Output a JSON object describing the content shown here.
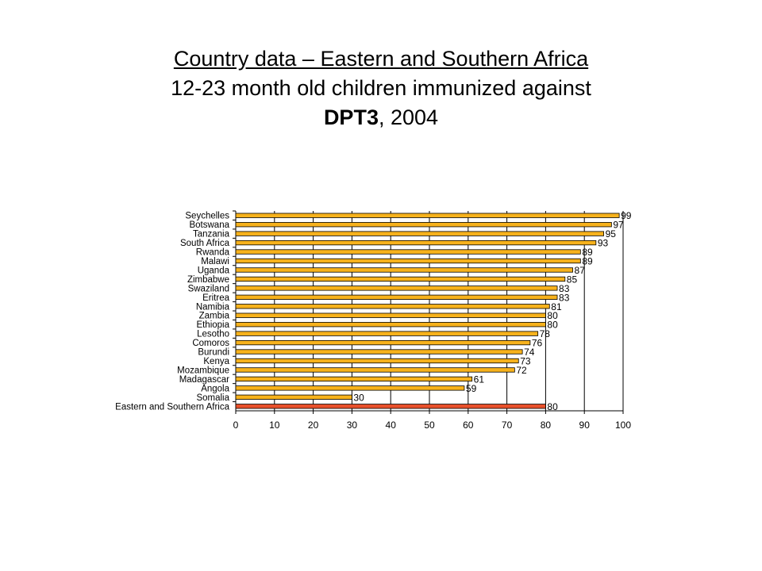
{
  "title": {
    "line1": "Country data – Eastern and Southern Africa",
    "line2": "12-23 month old children immunized against",
    "line3_bold": "DPT3",
    "line3_rest": ", 2004"
  },
  "colors": {
    "bar": "#F7B21C",
    "highlight_bar": "#E8502B",
    "bar_outline": "#000000",
    "grid": "#000000"
  },
  "chart_data": {
    "type": "bar",
    "orientation": "horizontal",
    "categories": [
      "Seychelles",
      "Botswana",
      "Tanzania",
      "South Africa",
      "Rwanda",
      "Malawi",
      "Uganda",
      "Zimbabwe",
      "Swaziland",
      "Eritrea",
      "Namibia",
      "Zambia",
      "Ethiopia",
      "Lesotho",
      "Comoros",
      "Burundi",
      "Kenya",
      "Mozambique",
      "Madagascar",
      "Angola",
      "Somalia",
      "Eastern and Southern Africa"
    ],
    "values": [
      99,
      97,
      95,
      93,
      89,
      89,
      87,
      85,
      83,
      83,
      81,
      80,
      80,
      78,
      76,
      74,
      73,
      72,
      61,
      59,
      30,
      80
    ],
    "data_labels": [
      "99",
      "97",
      "95",
      "93",
      "89",
      "89",
      "87",
      "85",
      "83",
      "83",
      "81",
      "80",
      "80",
      "78",
      "76",
      "74",
      "73",
      "72",
      "61",
      "59",
      "30",
      "80"
    ],
    "highlight_category": "Eastern and Southern Africa",
    "xlim": [
      0,
      100
    ],
    "xticks": [
      "0",
      "10",
      "20",
      "30",
      "40",
      "50",
      "60",
      "70",
      "80",
      "90",
      "100"
    ],
    "grid": true,
    "legend": "none"
  }
}
